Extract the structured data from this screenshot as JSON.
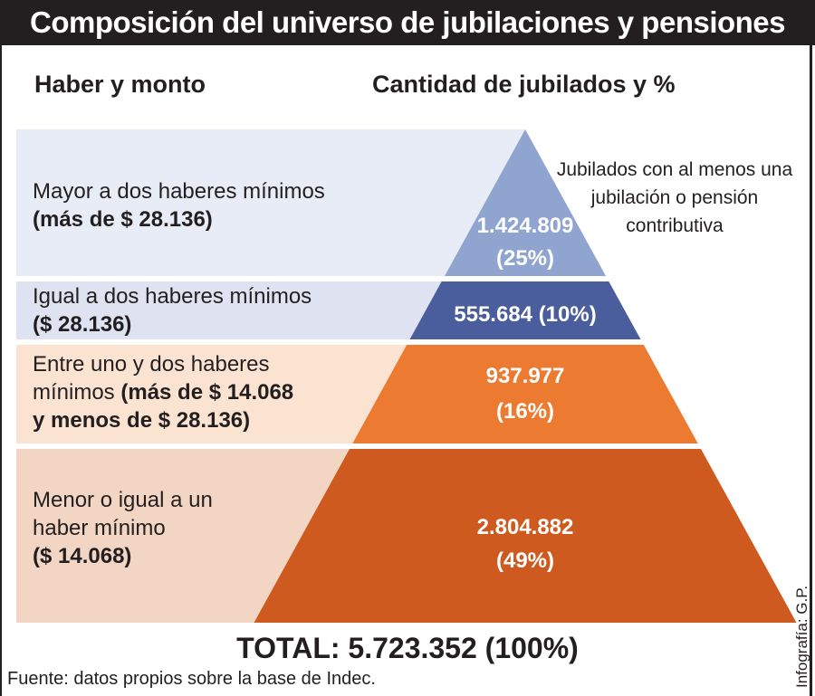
{
  "title": "Composición del universo de jubilaciones y pensiones",
  "headers": {
    "left": "Haber y monto",
    "right": "Cantidad de jubilados y %"
  },
  "note": "Jubilados con al menos una jubilación o pensión contributiva",
  "total": "TOTAL: 5.723.352 (100%)",
  "source": "Fuente: datos propios sobre la base de Indec.",
  "credit": "Infografía: G.P.",
  "colors": {
    "level_1": "#8fa4cf",
    "level_2": "#4a5e9e",
    "level_3": "#ec7a30",
    "level_4": "#cf5a1f",
    "band_1": "#e8ecf6",
    "band_2": "#dfe3f1",
    "band_3": "#fbe3d2",
    "band_4": "#f3d5c3"
  },
  "chart_data": {
    "type": "pyramid",
    "title": "Composición del universo de jubilaciones y pensiones",
    "levels": [
      {
        "category_parts": [
          {
            "text": "Mayor a dos haberes mínimos",
            "bold": false
          },
          {
            "text": "(más de $ 28.136)",
            "bold": true
          }
        ],
        "value": 1424809,
        "value_label": "1.424.809",
        "percent": 25,
        "percent_label": "(25%)"
      },
      {
        "category_parts": [
          {
            "text": "Igual a dos haberes mínimos",
            "bold": false
          },
          {
            "text": "($ 28.136)",
            "bold": true
          }
        ],
        "value": 555684,
        "value_label": "555.684",
        "percent": 10,
        "percent_label": "(10%)"
      },
      {
        "category_parts": [
          {
            "text": "Entre uno y dos haberes",
            "bold": false
          },
          {
            "text": "mínimos ",
            "bold": false
          },
          {
            "text": "(más de $ 14.068",
            "bold": true
          },
          {
            "text": "y menos de $ 28.136)",
            "bold": true
          }
        ],
        "value": 937977,
        "value_label": "937.977",
        "percent": 16,
        "percent_label": "(16%)"
      },
      {
        "category_parts": [
          {
            "text": "Menor o igual a un",
            "bold": false
          },
          {
            "text": "haber mínimo",
            "bold": false
          },
          {
            "text": "($ 14.068)",
            "bold": true
          }
        ],
        "value": 2804882,
        "value_label": "2.804.882",
        "percent": 49,
        "percent_label": "(49%)"
      }
    ],
    "total": 5723352
  }
}
